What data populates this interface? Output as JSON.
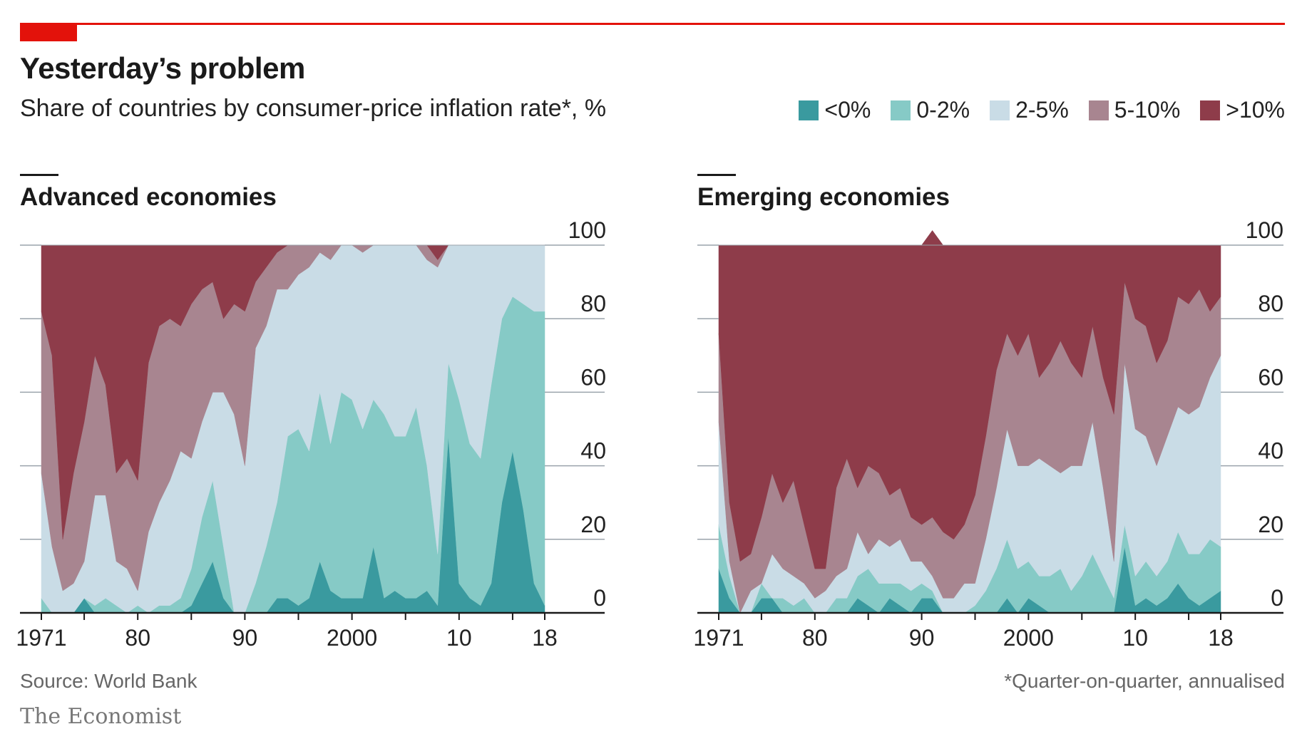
{
  "header": {
    "title": "Yesterday’s problem",
    "subtitle": "Share of countries by consumer-price inflation rate*, %"
  },
  "legend": [
    {
      "label": "<0%",
      "color": "#3a9a9f"
    },
    {
      "label": "0-2%",
      "color": "#86cac6"
    },
    {
      "label": "2-5%",
      "color": "#c9dce6"
    },
    {
      "label": "5-10%",
      "color": "#a88590"
    },
    {
      "label": ">10%",
      "color": "#8e3c4a"
    }
  ],
  "footer": {
    "source": "Source: World Bank",
    "footnote": "*Quarter-on-quarter, annualised",
    "brand": "The Economist"
  },
  "chart_data": [
    {
      "type": "area",
      "title": "Advanced economies",
      "stacked": true,
      "ylim": [
        0,
        100
      ],
      "yticks": [
        0,
        20,
        40,
        60,
        80,
        100
      ],
      "xlim": [
        1971,
        2018
      ],
      "xticks": [
        1971,
        1980,
        1990,
        2000,
        2010,
        2018
      ],
      "xtick_labels": [
        "1971",
        "80",
        "90",
        "2000",
        "10",
        "18"
      ],
      "x": [
        1971,
        1972,
        1973,
        1974,
        1975,
        1976,
        1977,
        1978,
        1979,
        1980,
        1981,
        1982,
        1983,
        1984,
        1985,
        1986,
        1987,
        1988,
        1989,
        1990,
        1991,
        1992,
        1993,
        1994,
        1995,
        1996,
        1997,
        1998,
        1999,
        2000,
        2001,
        2002,
        2003,
        2004,
        2005,
        2006,
        2007,
        2008,
        2009,
        2010,
        2011,
        2012,
        2013,
        2014,
        2015,
        2016,
        2017,
        2018
      ],
      "series": [
        {
          "name": "<0%",
          "values": [
            0,
            0,
            0,
            0,
            4,
            0,
            0,
            0,
            0,
            0,
            0,
            0,
            0,
            0,
            2,
            8,
            14,
            4,
            0,
            0,
            0,
            0,
            4,
            4,
            2,
            4,
            14,
            6,
            4,
            4,
            4,
            18,
            4,
            6,
            4,
            4,
            6,
            2,
            48,
            8,
            4,
            2,
            8,
            30,
            44,
            28,
            8,
            2
          ]
        },
        {
          "name": "0-2%",
          "values": [
            4,
            0,
            0,
            0,
            0,
            2,
            4,
            2,
            0,
            2,
            0,
            2,
            2,
            4,
            10,
            18,
            22,
            14,
            0,
            0,
            8,
            18,
            26,
            44,
            48,
            40,
            46,
            40,
            56,
            54,
            46,
            40,
            50,
            42,
            44,
            52,
            34,
            14,
            20,
            50,
            42,
            40,
            54,
            50,
            42,
            56,
            74,
            80
          ]
        },
        {
          "name": "2-5%",
          "values": [
            34,
            18,
            6,
            8,
            10,
            30,
            28,
            12,
            12,
            4,
            22,
            28,
            34,
            40,
            30,
            26,
            24,
            42,
            54,
            40,
            64,
            60,
            58,
            40,
            42,
            50,
            38,
            50,
            40,
            42,
            48,
            42,
            46,
            52,
            52,
            44,
            56,
            78,
            32,
            42,
            54,
            58,
            38,
            20,
            14,
            16,
            18,
            18
          ]
        },
        {
          "name": "5-10%",
          "values": [
            44,
            52,
            14,
            30,
            38,
            38,
            30,
            24,
            30,
            30,
            46,
            48,
            44,
            34,
            42,
            36,
            30,
            20,
            30,
            42,
            18,
            16,
            10,
            12,
            8,
            6,
            2,
            4,
            0,
            0,
            2,
            0,
            0,
            0,
            0,
            0,
            4,
            2,
            0,
            0,
            0,
            0,
            0,
            0,
            0,
            0,
            0,
            0
          ]
        },
        {
          "name": ">10%",
          "values": [
            18,
            30,
            80,
            62,
            48,
            30,
            38,
            62,
            58,
            64,
            32,
            22,
            20,
            22,
            16,
            12,
            10,
            20,
            16,
            18,
            10,
            6,
            2,
            0,
            0,
            0,
            0,
            0,
            0,
            0,
            0,
            0,
            0,
            0,
            0,
            0,
            0,
            4,
            0,
            0,
            0,
            0,
            0,
            0,
            0,
            0,
            0,
            0
          ]
        }
      ]
    },
    {
      "type": "area",
      "title": "Emerging economies",
      "stacked": true,
      "ylim": [
        0,
        100
      ],
      "yticks": [
        0,
        20,
        40,
        60,
        80,
        100
      ],
      "xlim": [
        1971,
        2018
      ],
      "xticks": [
        1971,
        1980,
        1990,
        2000,
        2010,
        2018
      ],
      "xtick_labels": [
        "1971",
        "80",
        "90",
        "2000",
        "10",
        "18"
      ],
      "x": [
        1971,
        1972,
        1973,
        1974,
        1975,
        1976,
        1977,
        1978,
        1979,
        1980,
        1981,
        1982,
        1983,
        1984,
        1985,
        1986,
        1987,
        1988,
        1989,
        1990,
        1991,
        1992,
        1993,
        1994,
        1995,
        1996,
        1997,
        1998,
        1999,
        2000,
        2001,
        2002,
        2003,
        2004,
        2005,
        2006,
        2007,
        2008,
        2009,
        2010,
        2011,
        2012,
        2013,
        2014,
        2015,
        2016,
        2017,
        2018
      ],
      "series": [
        {
          "name": "<0%",
          "values": [
            12,
            4,
            0,
            0,
            4,
            4,
            0,
            0,
            0,
            0,
            0,
            0,
            0,
            4,
            2,
            0,
            4,
            2,
            0,
            4,
            4,
            0,
            0,
            0,
            0,
            0,
            0,
            4,
            0,
            4,
            2,
            0,
            0,
            0,
            0,
            0,
            0,
            0,
            18,
            2,
            4,
            2,
            4,
            8,
            4,
            2,
            4,
            6
          ]
        },
        {
          "name": "0-2%",
          "values": [
            12,
            6,
            0,
            0,
            4,
            0,
            4,
            2,
            4,
            0,
            0,
            4,
            4,
            6,
            10,
            8,
            4,
            6,
            6,
            4,
            2,
            0,
            0,
            0,
            2,
            6,
            12,
            16,
            12,
            10,
            8,
            10,
            12,
            6,
            10,
            16,
            10,
            4,
            6,
            8,
            10,
            8,
            10,
            14,
            12,
            14,
            16,
            12
          ]
        },
        {
          "name": "2-5%",
          "values": [
            28,
            4,
            0,
            6,
            0,
            12,
            8,
            8,
            4,
            4,
            6,
            6,
            8,
            12,
            4,
            12,
            10,
            12,
            8,
            6,
            4,
            4,
            4,
            8,
            6,
            14,
            22,
            30,
            28,
            26,
            32,
            30,
            26,
            34,
            30,
            36,
            24,
            10,
            44,
            40,
            34,
            30,
            34,
            34,
            38,
            40,
            44,
            52
          ]
        },
        {
          "name": "5-10%",
          "values": [
            24,
            16,
            14,
            10,
            18,
            22,
            18,
            26,
            16,
            8,
            6,
            24,
            30,
            12,
            24,
            18,
            14,
            14,
            12,
            10,
            16,
            18,
            16,
            16,
            24,
            28,
            32,
            26,
            30,
            36,
            22,
            28,
            36,
            28,
            24,
            26,
            30,
            40,
            22,
            30,
            30,
            28,
            26,
            30,
            30,
            32,
            18,
            16
          ]
        },
        {
          "name": ">10%",
          "values": [
            24,
            70,
            86,
            84,
            74,
            62,
            70,
            64,
            76,
            88,
            88,
            66,
            58,
            66,
            60,
            62,
            68,
            66,
            74,
            76,
            78,
            78,
            80,
            76,
            68,
            52,
            34,
            24,
            30,
            24,
            36,
            32,
            26,
            32,
            36,
            22,
            36,
            46,
            10,
            20,
            22,
            32,
            26,
            14,
            16,
            12,
            18,
            14
          ]
        }
      ]
    }
  ]
}
